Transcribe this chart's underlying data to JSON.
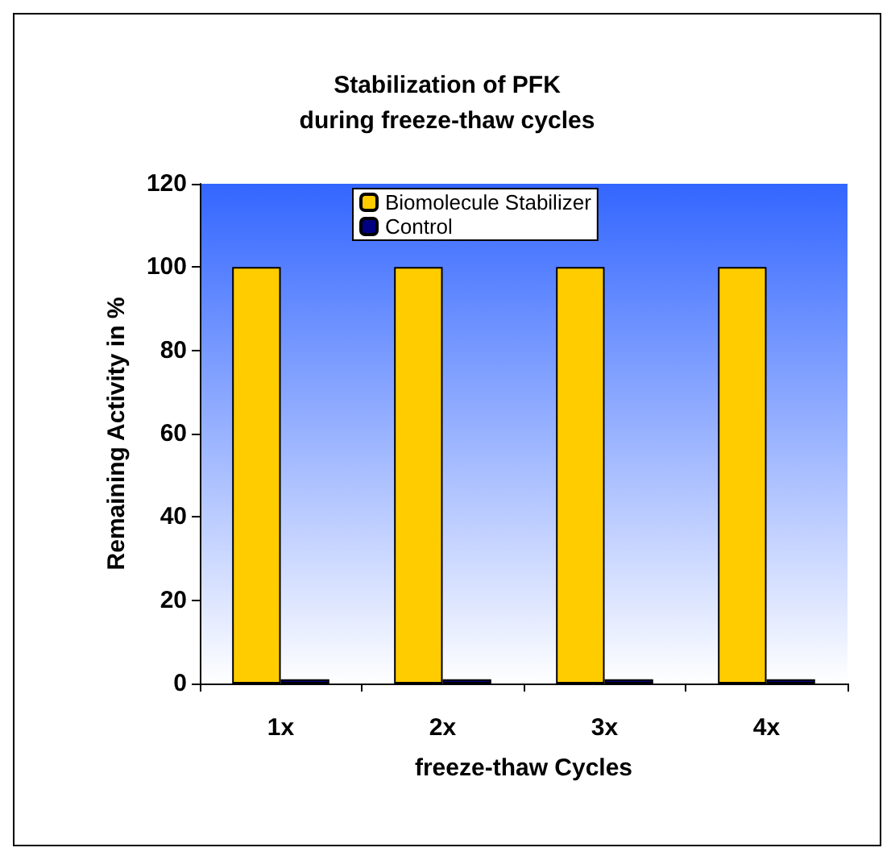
{
  "chart_data": {
    "type": "bar",
    "title": "Stabilization of PFK\nduring freeze-thaw cycles",
    "xlabel": "freeze-thaw Cycles",
    "ylabel": "Remaining Activity in %",
    "categories": [
      "1x",
      "2x",
      "3x",
      "4x"
    ],
    "series": [
      {
        "name": "Biomolecule Stabilizer",
        "color": "#ffcc00",
        "values": [
          100,
          100,
          100,
          100
        ]
      },
      {
        "name": "Control",
        "color": "#000080",
        "values": [
          1,
          1,
          1,
          1
        ]
      }
    ],
    "ylim": [
      0,
      120
    ],
    "yticks": [
      0,
      20,
      40,
      60,
      80,
      100,
      120
    ],
    "grid": false,
    "legend": "top"
  }
}
